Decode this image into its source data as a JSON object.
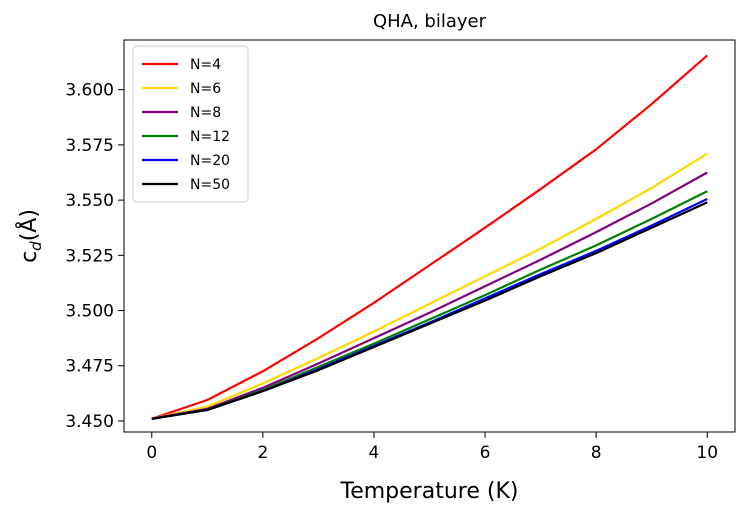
{
  "chart_data": {
    "type": "line",
    "title": "QHA, bilayer",
    "xlabel": "Temperature (K)",
    "ylabel_main": "c",
    "ylabel_sub": "d",
    "ylabel_rest": "(Å)",
    "xlim": [
      -0.5,
      10.5
    ],
    "ylim": [
      3.445,
      3.6225
    ],
    "xticks": [
      0,
      2,
      4,
      6,
      8,
      10
    ],
    "xtick_labels": [
      "0",
      "2",
      "4",
      "6",
      "8",
      "10"
    ],
    "yticks": [
      3.45,
      3.475,
      3.5,
      3.525,
      3.55,
      3.575,
      3.6
    ],
    "ytick_labels": [
      "3.450",
      "3.475",
      "3.500",
      "3.525",
      "3.550",
      "3.575",
      "3.600"
    ],
    "grid": false,
    "legend_position": "top-left",
    "x": [
      0,
      1,
      2,
      3,
      4,
      5,
      6,
      7,
      8,
      9,
      10
    ],
    "series": [
      {
        "name": "N=4",
        "color": "#ff0000",
        "values": [
          3.451,
          3.4595,
          3.4725,
          3.4875,
          3.5035,
          3.5205,
          3.5375,
          3.555,
          3.573,
          3.5935,
          3.6155
        ]
      },
      {
        "name": "N=6",
        "color": "#ffd700",
        "values": [
          3.451,
          3.4565,
          3.467,
          3.4785,
          3.4905,
          3.503,
          3.5155,
          3.528,
          3.5415,
          3.5555,
          3.571
        ]
      },
      {
        "name": "N=8",
        "color": "#800080",
        "values": [
          3.451,
          3.4555,
          3.465,
          3.476,
          3.4875,
          3.499,
          3.511,
          3.523,
          3.5355,
          3.5485,
          3.5625
        ]
      },
      {
        "name": "N=12",
        "color": "#008000",
        "values": [
          3.451,
          3.455,
          3.464,
          3.4745,
          3.485,
          3.496,
          3.507,
          3.5185,
          3.5295,
          3.5415,
          3.554
        ]
      },
      {
        "name": "N=20",
        "color": "#0000ff",
        "values": [
          3.451,
          3.455,
          3.4635,
          3.4735,
          3.484,
          3.4945,
          3.5055,
          3.5165,
          3.527,
          3.5385,
          3.5505
        ]
      },
      {
        "name": "N=50",
        "color": "#000000",
        "values": [
          3.451,
          3.455,
          3.4635,
          3.473,
          3.4835,
          3.494,
          3.5045,
          3.5155,
          3.526,
          3.5375,
          3.549
        ]
      }
    ]
  }
}
